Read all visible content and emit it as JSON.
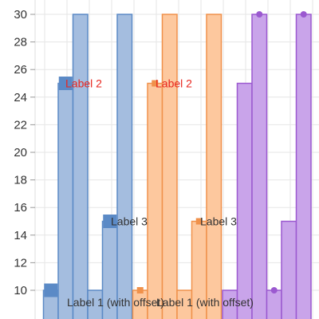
{
  "chart_data": {
    "type": "bar",
    "ylim": [
      9,
      30
    ],
    "y_ticks": [
      "10",
      "12",
      "14",
      "16",
      "18",
      "20",
      "22",
      "24",
      "26",
      "28",
      "30"
    ],
    "grid": true,
    "series": [
      {
        "color": "#5b8ac6",
        "fill": "#a4bddf",
        "values": [
          10,
          25,
          30,
          10,
          15,
          30
        ]
      },
      {
        "color": "#f0914b",
        "fill": "#fdc89e",
        "values": [
          10,
          25,
          30,
          10,
          15,
          30
        ]
      },
      {
        "color": "#9b59d0",
        "fill": "#c9a4ea",
        "values": [
          10,
          25,
          30,
          10,
          15,
          30
        ]
      }
    ],
    "point_labels": {
      "label2": "Label 2",
      "label3": "Label 3",
      "label1": "Label 1 (with offset)"
    },
    "label_colors": {
      "label2": "#e8261e",
      "label3": "#333333",
      "label1": "#333333"
    }
  }
}
